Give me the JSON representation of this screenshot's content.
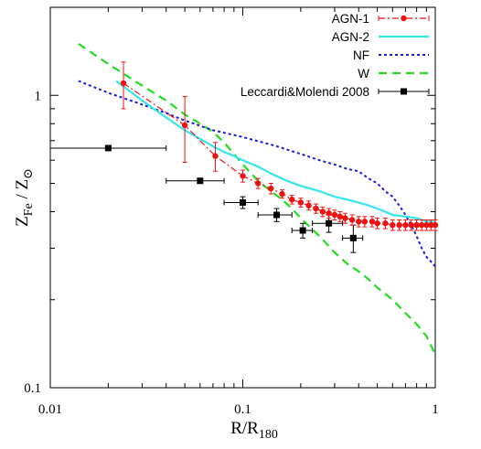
{
  "chart_data": {
    "type": "line",
    "xscale": "log",
    "yscale": "log",
    "xlim": [
      0.01,
      1
    ],
    "ylim": [
      0.1,
      2
    ],
    "xticks": [
      {
        "value": 0.01,
        "label": "0.01"
      },
      {
        "value": 0.1,
        "label": "0.1"
      },
      {
        "value": 1,
        "label": "1"
      }
    ],
    "yticks": [
      {
        "value": 0.1,
        "label": "0.1"
      },
      {
        "value": 1,
        "label": "1"
      }
    ],
    "xlabel": {
      "main": "R/R",
      "sub": "180"
    },
    "ylabel": {
      "main_a": "Z",
      "sub_a": "Fe",
      "sep": " / Z",
      "sub_b": "⊙"
    },
    "legend_position": "top-right",
    "grid": false,
    "series": [
      {
        "name": "AGN-1",
        "color": "#ee1111",
        "style": "dashdot-markers",
        "x": [
          0.024,
          0.05,
          0.072,
          0.1,
          0.12,
          0.14,
          0.16,
          0.18,
          0.2,
          0.22,
          0.24,
          0.26,
          0.28,
          0.3,
          0.32,
          0.34,
          0.37,
          0.4,
          0.43,
          0.47,
          0.5,
          0.55,
          0.6,
          0.65,
          0.7,
          0.75,
          0.8,
          0.85,
          0.9,
          0.95,
          1.0
        ],
        "y": [
          1.1,
          0.79,
          0.62,
          0.53,
          0.5,
          0.48,
          0.46,
          0.44,
          0.43,
          0.42,
          0.41,
          0.4,
          0.395,
          0.39,
          0.385,
          0.38,
          0.375,
          0.37,
          0.37,
          0.37,
          0.365,
          0.365,
          0.36,
          0.36,
          0.36,
          0.36,
          0.36,
          0.36,
          0.36,
          0.36,
          0.36
        ],
        "yerr": [
          0.2,
          0.2,
          0.07,
          0.025,
          0.02,
          0.02,
          0.015,
          0.015,
          0.015,
          0.015,
          0.015,
          0.015,
          0.015,
          0.015,
          0.015,
          0.015,
          0.015,
          0.015,
          0.015,
          0.015,
          0.015,
          0.015,
          0.015,
          0.015,
          0.015,
          0.015,
          0.015,
          0.015,
          0.015,
          0.015,
          0.015
        ]
      },
      {
        "name": "AGN-2",
        "color": "#33e6ee",
        "style": "solid",
        "x": [
          0.022,
          0.03,
          0.04,
          0.05,
          0.06,
          0.07,
          0.08,
          0.09,
          0.1,
          0.12,
          0.14,
          0.17,
          0.2,
          0.25,
          0.3,
          0.35,
          0.4,
          0.45,
          0.5,
          0.55,
          0.6,
          0.7,
          0.8,
          0.9,
          1.0
        ],
        "y": [
          1.12,
          0.96,
          0.84,
          0.76,
          0.71,
          0.67,
          0.64,
          0.62,
          0.6,
          0.57,
          0.54,
          0.51,
          0.49,
          0.47,
          0.45,
          0.44,
          0.43,
          0.42,
          0.41,
          0.4,
          0.39,
          0.385,
          0.38,
          0.37,
          0.37
        ]
      },
      {
        "name": "NF",
        "color": "#1a1ad9",
        "style": "dotted",
        "x": [
          0.014,
          0.02,
          0.03,
          0.04,
          0.05,
          0.07,
          0.1,
          0.15,
          0.2,
          0.25,
          0.3,
          0.35,
          0.4,
          0.45,
          0.5,
          0.55,
          0.6,
          0.65,
          0.7,
          0.75,
          0.8,
          0.85,
          0.9,
          0.95,
          1.0
        ],
        "y": [
          1.12,
          1.02,
          0.93,
          0.87,
          0.82,
          0.76,
          0.72,
          0.67,
          0.63,
          0.6,
          0.58,
          0.56,
          0.55,
          0.52,
          0.5,
          0.47,
          0.45,
          0.42,
          0.39,
          0.36,
          0.33,
          0.3,
          0.28,
          0.27,
          0.26
        ]
      },
      {
        "name": "W",
        "color": "#22dd22",
        "style": "dashed",
        "x": [
          0.014,
          0.02,
          0.03,
          0.04,
          0.05,
          0.06,
          0.07,
          0.08,
          0.09,
          0.1,
          0.12,
          0.14,
          0.16,
          0.18,
          0.2,
          0.25,
          0.3,
          0.35,
          0.4,
          0.45,
          0.5,
          0.6,
          0.7,
          0.8,
          0.9,
          1.0
        ],
        "y": [
          1.5,
          1.28,
          1.08,
          0.96,
          0.86,
          0.8,
          0.75,
          0.69,
          0.63,
          0.58,
          0.51,
          0.47,
          0.44,
          0.41,
          0.38,
          0.33,
          0.29,
          0.265,
          0.25,
          0.235,
          0.22,
          0.2,
          0.18,
          0.165,
          0.15,
          0.13
        ]
      },
      {
        "name": "Leccardi&Molendi 2008",
        "color": "#000000",
        "style": "points-xerr",
        "points": [
          {
            "x": 0.02,
            "xlo": 0.01,
            "xhi": 0.04,
            "y": 0.66,
            "yerr": 0.0
          },
          {
            "x": 0.06,
            "xlo": 0.04,
            "xhi": 0.08,
            "y": 0.51,
            "yerr": 0.01
          },
          {
            "x": 0.1,
            "xlo": 0.08,
            "xhi": 0.12,
            "y": 0.43,
            "yerr": 0.02
          },
          {
            "x": 0.15,
            "xlo": 0.12,
            "xhi": 0.18,
            "y": 0.39,
            "yerr": 0.02
          },
          {
            "x": 0.205,
            "xlo": 0.18,
            "xhi": 0.23,
            "y": 0.345,
            "yerr": 0.02
          },
          {
            "x": 0.28,
            "xlo": 0.23,
            "xhi": 0.33,
            "y": 0.365,
            "yerr": 0.025
          },
          {
            "x": 0.375,
            "xlo": 0.33,
            "xhi": 0.42,
            "y": 0.325,
            "yerr": 0.035
          }
        ]
      }
    ]
  }
}
